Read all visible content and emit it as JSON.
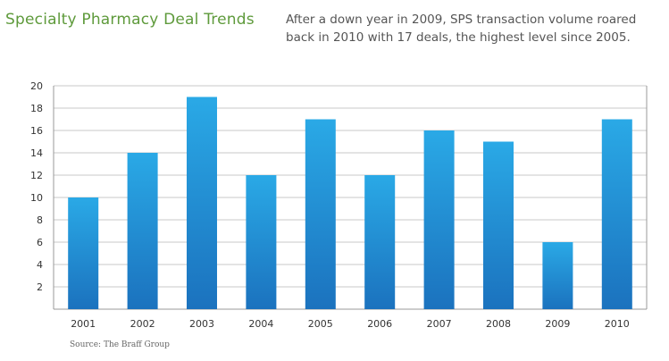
{
  "chart_data": {
    "type": "bar",
    "title": "Specialty Pharmacy Deal Trends",
    "subtitle": "After a down year in 2009, SPS transaction volume roared back in 2010 with 17 deals, the highest level since 2005.",
    "source": "Source: The Braff Group",
    "categories": [
      "2001",
      "2002",
      "2003",
      "2004",
      "2005",
      "2006",
      "2007",
      "2008",
      "2009",
      "2010"
    ],
    "values": [
      10,
      14,
      19,
      12,
      17,
      12,
      16,
      15,
      6,
      17
    ],
    "ylim": [
      0,
      20
    ],
    "yticks": [
      "2",
      "4",
      "6",
      "8",
      "10",
      "12",
      "14",
      "16",
      "18",
      "20"
    ],
    "grid": true,
    "colors": {
      "bar_top": "#2aa9e6",
      "bar_bottom": "#1b72be",
      "grid": "#c9c9c9",
      "axis": "#999999"
    }
  }
}
